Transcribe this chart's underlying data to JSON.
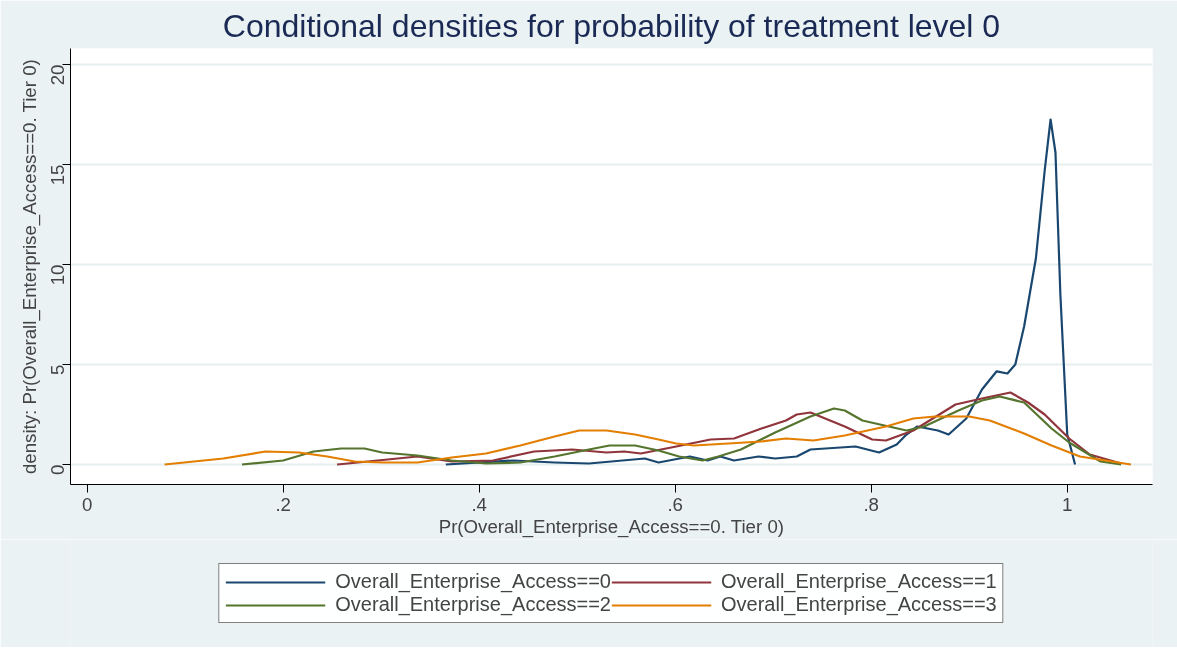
{
  "chart_data": {
    "type": "line",
    "title": "Conditional densities for probability of treatment level 0",
    "xlabel": "Pr(Overall_Enterprise_Access==0. Tier 0)",
    "ylabel": "density: Pr(Overall_Enterprise_Access==0. Tier 0)",
    "xlim": [
      -0.017,
      1.087
    ],
    "ylim": [
      -1,
      20.8
    ],
    "xticks": [
      {
        "value": 0,
        "label": "0"
      },
      {
        "value": 0.2,
        "label": ".2"
      },
      {
        "value": 0.4,
        "label": ".4"
      },
      {
        "value": 0.6,
        "label": ".6"
      },
      {
        "value": 0.8,
        "label": ".8"
      },
      {
        "value": 1,
        "label": "1"
      }
    ],
    "yticks": [
      0,
      5,
      10,
      15,
      20
    ],
    "grid": "y",
    "legend": "bottom",
    "marker": "none",
    "line_style": "solid",
    "series": [
      {
        "name": "Overall_Enterprise_Access==0",
        "color": "#1a476f",
        "x": [
          0.366,
          0.435,
          0.477,
          0.512,
          0.569,
          0.583,
          0.615,
          0.633,
          0.646,
          0.66,
          0.685,
          0.702,
          0.724,
          0.738,
          0.784,
          0.808,
          0.826,
          0.836,
          0.847,
          0.868,
          0.879,
          0.897,
          0.913,
          0.928,
          0.939,
          0.947,
          0.956,
          0.968,
          0.977,
          0.983,
          0.988,
          0.993,
          1.0,
          1.008
        ],
        "values": [
          0,
          0.2,
          0.1,
          0.05,
          0.3,
          0.1,
          0.4,
          0.2,
          0.4,
          0.2,
          0.4,
          0.3,
          0.4,
          0.75,
          0.9,
          0.6,
          1.0,
          1.5,
          1.9,
          1.7,
          1.5,
          2.3,
          3.75,
          4.66,
          4.55,
          5.0,
          6.9,
          10.3,
          14.7,
          17.25,
          15.6,
          8.5,
          1.5,
          0
        ]
      },
      {
        "name": "Overall_Enterprise_Access==1",
        "color": "#90353b",
        "x": [
          0.255,
          0.266,
          0.337,
          0.372,
          0.414,
          0.456,
          0.495,
          0.53,
          0.548,
          0.565,
          0.601,
          0.636,
          0.66,
          0.688,
          0.713,
          0.724,
          0.738,
          0.773,
          0.801,
          0.815,
          0.843,
          0.886,
          0.913,
          0.942,
          0.96,
          0.977,
          1.002,
          1.023,
          1.055
        ],
        "values": [
          0,
          0.05,
          0.4,
          0.15,
          0.2,
          0.65,
          0.75,
          0.6,
          0.65,
          0.55,
          0.9,
          1.25,
          1.3,
          1.8,
          2.2,
          2.5,
          2.6,
          1.9,
          1.25,
          1.2,
          1.7,
          3.0,
          3.3,
          3.6,
          3.1,
          2.5,
          1.3,
          0.5,
          0.05
        ]
      },
      {
        "name": "Overall_Enterprise_Access==2",
        "color": "#55752f",
        "x": [
          0.158,
          0.2,
          0.231,
          0.259,
          0.283,
          0.301,
          0.337,
          0.372,
          0.407,
          0.442,
          0.477,
          0.512,
          0.533,
          0.559,
          0.583,
          0.604,
          0.628,
          0.644,
          0.667,
          0.702,
          0.738,
          0.762,
          0.773,
          0.791,
          0.818,
          0.836,
          0.854,
          0.889,
          0.913,
          0.931,
          0.956,
          0.984,
          1.002,
          1.034,
          1.055
        ],
        "values": [
          0,
          0.2,
          0.65,
          0.8,
          0.8,
          0.6,
          0.45,
          0.2,
          0.05,
          0.1,
          0.4,
          0.75,
          0.95,
          0.95,
          0.7,
          0.4,
          0.2,
          0.4,
          0.75,
          1.6,
          2.4,
          2.8,
          2.7,
          2.2,
          1.9,
          1.7,
          1.9,
          2.7,
          3.2,
          3.4,
          3.1,
          1.8,
          1.1,
          0.15,
          0
        ]
      },
      {
        "name": "Overall_Enterprise_Access==3",
        "color": "#e37e00",
        "x": [
          0.079,
          0.139,
          0.182,
          0.216,
          0.245,
          0.273,
          0.301,
          0.337,
          0.372,
          0.407,
          0.442,
          0.477,
          0.502,
          0.53,
          0.559,
          0.583,
          0.601,
          0.619,
          0.654,
          0.688,
          0.713,
          0.741,
          0.773,
          0.815,
          0.843,
          0.865,
          0.9,
          0.921,
          0.956,
          0.984,
          1.013,
          1.065
        ],
        "values": [
          0,
          0.3,
          0.65,
          0.6,
          0.4,
          0.15,
          0.1,
          0.1,
          0.35,
          0.55,
          0.95,
          1.4,
          1.7,
          1.7,
          1.5,
          1.25,
          1.05,
          0.95,
          1.05,
          1.15,
          1.3,
          1.2,
          1.45,
          1.9,
          2.3,
          2.4,
          2.4,
          2.2,
          1.55,
          0.95,
          0.4,
          0
        ]
      }
    ]
  }
}
